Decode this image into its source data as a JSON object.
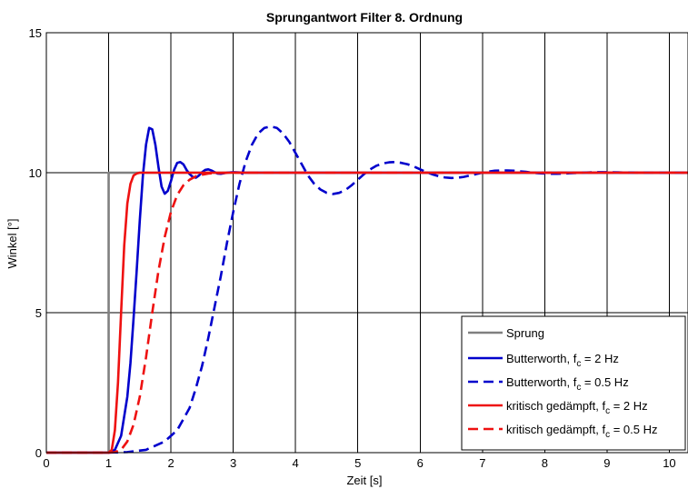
{
  "chart_data": {
    "type": "line",
    "title": "Sprungantwort Filter 8. Ordnung",
    "xlabel": "Zeit [s]",
    "ylabel": "Winkel [°]",
    "xlim": [
      0,
      10.3
    ],
    "ylim": [
      0,
      15
    ],
    "xticks": [
      "0",
      "1",
      "2",
      "3",
      "4",
      "5",
      "6",
      "7",
      "8",
      "9",
      "10"
    ],
    "yticks": [
      "0",
      "5",
      "10",
      "15"
    ],
    "grid": true,
    "legend_position": "bottom-right",
    "series": [
      {
        "name": "Sprung",
        "legend_main": "Sprung",
        "legend_sub": "",
        "legend_tail": "",
        "color": "#808080",
        "dash": "solid",
        "x": [
          0,
          1,
          1,
          10.3
        ],
        "y": [
          0,
          0,
          10,
          10
        ]
      },
      {
        "name": "Butterworth, f_c = 2 Hz",
        "legend_main": "Butterworth, f",
        "legend_sub": "c",
        "legend_tail": " = 2 Hz",
        "color": "#0000cc",
        "dash": "solid",
        "x": [
          0,
          1.0,
          1.1,
          1.2,
          1.3,
          1.35,
          1.4,
          1.45,
          1.5,
          1.55,
          1.6,
          1.65,
          1.7,
          1.75,
          1.8,
          1.85,
          1.9,
          1.95,
          2.0,
          2.05,
          2.1,
          2.15,
          2.2,
          2.25,
          2.3,
          2.35,
          2.4,
          2.45,
          2.5,
          2.55,
          2.6,
          2.65,
          2.7,
          2.75,
          2.8,
          2.9,
          3.0,
          3.2,
          3.5,
          4.0,
          10.3
        ],
        "y": [
          0,
          0,
          0.1,
          0.6,
          2.0,
          3.2,
          4.8,
          6.5,
          8.3,
          9.9,
          11.0,
          11.6,
          11.55,
          11.0,
          10.2,
          9.5,
          9.25,
          9.35,
          9.7,
          10.1,
          10.35,
          10.38,
          10.3,
          10.1,
          9.95,
          9.85,
          9.82,
          9.9,
          10.02,
          10.1,
          10.12,
          10.08,
          10.02,
          9.97,
          9.96,
          10.0,
          10.02,
          10.0,
          10.0,
          10.0,
          10.0
        ]
      },
      {
        "name": "Butterworth, f_c = 0.5 Hz",
        "legend_main": "Butterworth, f",
        "legend_sub": "c",
        "legend_tail": " = 0.5 Hz",
        "color": "#0000cc",
        "dash": "dashed",
        "x": [
          0,
          1.0,
          1.3,
          1.6,
          1.9,
          2.1,
          2.3,
          2.4,
          2.5,
          2.6,
          2.7,
          2.8,
          2.9,
          3.0,
          3.1,
          3.2,
          3.3,
          3.4,
          3.5,
          3.6,
          3.7,
          3.8,
          3.9,
          4.0,
          4.1,
          4.2,
          4.3,
          4.4,
          4.5,
          4.6,
          4.7,
          4.8,
          4.9,
          5.0,
          5.1,
          5.2,
          5.3,
          5.4,
          5.5,
          5.6,
          5.7,
          5.8,
          5.9,
          6.0,
          6.1,
          6.2,
          6.3,
          6.4,
          6.5,
          6.6,
          6.7,
          6.8,
          6.9,
          7.0,
          7.1,
          7.2,
          7.3,
          7.4,
          7.5,
          7.6,
          7.7,
          7.8,
          7.9,
          8.0,
          8.1,
          8.2,
          8.4,
          8.6,
          8.8,
          9.0,
          9.2,
          9.5,
          10.3
        ],
        "y": [
          0,
          0,
          0.02,
          0.1,
          0.4,
          0.8,
          1.6,
          2.3,
          3.1,
          4.1,
          5.2,
          6.3,
          7.5,
          8.6,
          9.6,
          10.4,
          11.0,
          11.4,
          11.6,
          11.65,
          11.6,
          11.4,
          11.1,
          10.7,
          10.3,
          9.9,
          9.6,
          9.4,
          9.28,
          9.24,
          9.28,
          9.38,
          9.55,
          9.75,
          9.95,
          10.12,
          10.25,
          10.33,
          10.37,
          10.38,
          10.35,
          10.3,
          10.22,
          10.12,
          10.02,
          9.94,
          9.87,
          9.83,
          9.81,
          9.82,
          9.85,
          9.9,
          9.95,
          10.0,
          10.04,
          10.07,
          10.08,
          10.08,
          10.07,
          10.05,
          10.03,
          10.0,
          9.98,
          9.97,
          9.96,
          9.96,
          9.98,
          10.0,
          10.02,
          10.02,
          10.01,
          10.0,
          10.0
        ]
      },
      {
        "name": "kritisch gedämpft, f_c = 2 Hz",
        "legend_main": "kritisch gedämpft, f",
        "legend_sub": "c",
        "legend_tail": " = 2 Hz",
        "color": "#ee1111",
        "dash": "solid",
        "x": [
          0,
          1.0,
          1.05,
          1.1,
          1.15,
          1.2,
          1.25,
          1.3,
          1.35,
          1.4,
          1.45,
          1.5,
          1.6,
          10.3
        ],
        "y": [
          0,
          0,
          0.1,
          0.8,
          2.5,
          5.0,
          7.4,
          8.9,
          9.6,
          9.9,
          9.97,
          10.0,
          10.0,
          10.0
        ]
      },
      {
        "name": "kritisch gedämpft, f_c = 0.5 Hz",
        "legend_main": "kritisch gedämpft, f",
        "legend_sub": "c",
        "legend_tail": " = 0.5 Hz",
        "color": "#ee1111",
        "dash": "dashed",
        "x": [
          0,
          1.0,
          1.1,
          1.2,
          1.3,
          1.4,
          1.5,
          1.6,
          1.7,
          1.8,
          1.9,
          2.0,
          2.1,
          2.2,
          2.3,
          2.4,
          2.5,
          2.6,
          2.8,
          3.0,
          10.3
        ],
        "y": [
          0,
          0,
          0.02,
          0.1,
          0.4,
          1.0,
          2.0,
          3.4,
          5.0,
          6.5,
          7.7,
          8.6,
          9.2,
          9.55,
          9.75,
          9.87,
          9.93,
          9.97,
          9.99,
          10.0,
          10.0
        ]
      }
    ]
  }
}
